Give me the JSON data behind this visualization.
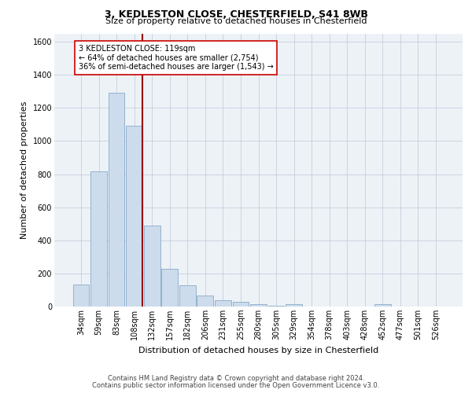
{
  "title1": "3, KEDLESTON CLOSE, CHESTERFIELD, S41 8WB",
  "title2": "Size of property relative to detached houses in Chesterfield",
  "xlabel": "Distribution of detached houses by size in Chesterfield",
  "ylabel": "Number of detached properties",
  "footnote1": "Contains HM Land Registry data © Crown copyright and database right 2024.",
  "footnote2": "Contains public sector information licensed under the Open Government Licence v3.0.",
  "bar_labels": [
    "34sqm",
    "59sqm",
    "83sqm",
    "108sqm",
    "132sqm",
    "157sqm",
    "182sqm",
    "206sqm",
    "231sqm",
    "255sqm",
    "280sqm",
    "305sqm",
    "329sqm",
    "354sqm",
    "378sqm",
    "403sqm",
    "428sqm",
    "452sqm",
    "477sqm",
    "501sqm",
    "526sqm"
  ],
  "bar_values": [
    135,
    815,
    1290,
    1090,
    490,
    230,
    130,
    65,
    38,
    27,
    15,
    5,
    12,
    2,
    0,
    0,
    0,
    12,
    0,
    0,
    0
  ],
  "bar_color": "#ccdcec",
  "bar_edgecolor": "#88aac8",
  "ylim": [
    0,
    1650
  ],
  "yticks": [
    0,
    200,
    400,
    600,
    800,
    1000,
    1200,
    1400,
    1600
  ],
  "vline_x": 3.47,
  "vline_color": "#990000",
  "annotation_line1": "3 KEDLESTON CLOSE: 119sqm",
  "annotation_line2": "← 64% of detached houses are smaller (2,754)",
  "annotation_line3": "36% of semi-detached houses are larger (1,543) →",
  "annotation_box_facecolor": "#ffffff",
  "annotation_box_edgecolor": "#cc0000",
  "background_color": "#edf2f7",
  "grid_color": "#c0c8d8",
  "title1_fontsize": 9,
  "title2_fontsize": 8,
  "tick_fontsize": 7,
  "ylabel_fontsize": 8,
  "xlabel_fontsize": 8,
  "footnote_fontsize": 6,
  "annot_fontsize": 7
}
